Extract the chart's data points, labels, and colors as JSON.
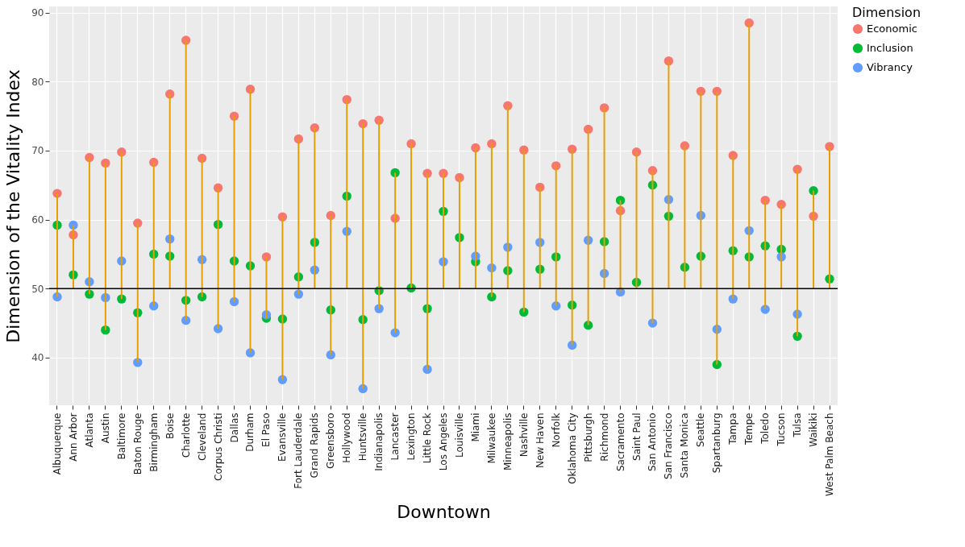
{
  "chart_data": {
    "type": "scatter",
    "xlabel": "Downtown",
    "ylabel": "Dimension of the Vitality Index",
    "legend_title": "Dimension",
    "legend": "right",
    "grid": true,
    "marker": "circle",
    "categories": [
      "Albuquerque",
      "Ann Arbor",
      "Atlanta",
      "Austin",
      "Baltimore",
      "Baton Rouge",
      "Birmingham",
      "Boise",
      "Charlotte",
      "Cleveland",
      "Corpus Christi",
      "Dallas",
      "Durham",
      "El Paso",
      "Evansville",
      "Fort Lauderdale",
      "Grand Rapids",
      "Greensboro",
      "Hollywood",
      "Huntsville",
      "Indianapolis",
      "Lancaster",
      "Lexington",
      "Little Rock",
      "Los Angeles",
      "Louisville",
      "Miami",
      "Milwaukee",
      "Minneapolis",
      "Nashville",
      "New Haven",
      "Norfolk",
      "Oklahoma City",
      "Pittsburgh",
      "Richmond",
      "Sacramento",
      "Saint Paul",
      "San Antonio",
      "San Francisco",
      "Santa Monica",
      "Seattle",
      "Spartanburg",
      "Tampa",
      "Tempe",
      "Toledo",
      "Tucson",
      "Tulsa",
      "Waikiki",
      "West Palm Beach"
    ],
    "ylim": [
      33.1,
      90.9
    ],
    "yticks": [
      40,
      50,
      60,
      70,
      80,
      90
    ],
    "ref_lines": [
      {
        "axis": "y",
        "value": 50,
        "color": "#000000"
      }
    ],
    "series": [
      {
        "type": "bar",
        "color": "#e69f00",
        "base": [
          48.8,
          50,
          49.2,
          44.0,
          48.5,
          39.3,
          47.5,
          50,
          45.4,
          48.8,
          44.2,
          48.1,
          40.7,
          45.7,
          36.8,
          49.2,
          50,
          40.4,
          50,
          35.5,
          47.1,
          43.6,
          50,
          38.3,
          50,
          50,
          50,
          48.8,
          50,
          46.6,
          50,
          47.5,
          41.8,
          44.7,
          50,
          49.5,
          50,
          45.0,
          50,
          50,
          50,
          39.0,
          48.5,
          50,
          47.0,
          50,
          43.1,
          50,
          50
        ],
        "values": [
          15.0,
          9.2,
          19.8,
          24.2,
          21.3,
          20.2,
          20.8,
          28.2,
          40.6,
          20.1,
          20.4,
          26.9,
          38.2,
          8.9,
          23.6,
          22.5,
          23.3,
          20.2,
          27.4,
          38.4,
          27.3,
          23.2,
          21.0,
          28.4,
          16.7,
          16.1,
          20.4,
          22.2,
          26.5,
          23.5,
          14.7,
          20.3,
          28.4,
          28.4,
          26.2,
          13.3,
          19.8,
          22.1,
          33.0,
          20.7,
          28.6,
          39.6,
          20.8,
          38.5,
          15.8,
          12.2,
          24.2,
          14.2,
          20.6
        ]
      },
      {
        "name": "Economic",
        "color": "#f8766d",
        "values": [
          63.8,
          57.8,
          69.0,
          68.2,
          69.8,
          59.5,
          68.3,
          78.2,
          86.0,
          68.9,
          64.6,
          75.0,
          78.9,
          54.6,
          60.4,
          71.7,
          73.3,
          60.6,
          77.4,
          73.9,
          74.4,
          60.2,
          71.0,
          66.7,
          66.7,
          66.1,
          70.4,
          71.0,
          76.5,
          70.1,
          64.7,
          67.8,
          70.2,
          73.1,
          76.2,
          61.3,
          69.8,
          67.1,
          83.0,
          70.7,
          78.6,
          78.6,
          69.3,
          88.5,
          62.8,
          62.2,
          67.3,
          60.5,
          70.6
        ]
      },
      {
        "name": "Inclusion",
        "color": "#00ba38",
        "values": [
          59.2,
          52.0,
          49.2,
          44.0,
          48.5,
          46.5,
          55.0,
          54.7,
          48.3,
          48.8,
          59.3,
          54.0,
          53.3,
          45.7,
          45.6,
          51.7,
          56.7,
          46.9,
          63.4,
          45.5,
          49.7,
          66.8,
          50.1,
          47.1,
          61.2,
          57.4,
          53.9,
          48.8,
          52.6,
          46.6,
          52.8,
          54.6,
          47.6,
          44.7,
          56.8,
          62.8,
          50.9,
          65.0,
          60.5,
          53.1,
          54.7,
          39.0,
          55.5,
          54.6,
          56.2,
          55.7,
          43.1,
          64.2,
          51.4
        ]
      },
      {
        "name": "Vibrancy",
        "color": "#619cff",
        "values": [
          48.8,
          59.2,
          51.0,
          48.7,
          54.0,
          39.3,
          47.5,
          57.2,
          45.4,
          54.2,
          44.2,
          48.1,
          40.7,
          46.2,
          36.8,
          49.2,
          52.7,
          40.4,
          58.3,
          35.5,
          47.1,
          43.6,
          null,
          38.3,
          53.9,
          null,
          54.7,
          53.0,
          56.0,
          null,
          56.7,
          47.5,
          41.8,
          57.0,
          52.2,
          49.5,
          null,
          45.0,
          62.9,
          null,
          60.6,
          44.1,
          48.5,
          58.4,
          47.0,
          54.6,
          46.3,
          null,
          null
        ]
      }
    ]
  }
}
